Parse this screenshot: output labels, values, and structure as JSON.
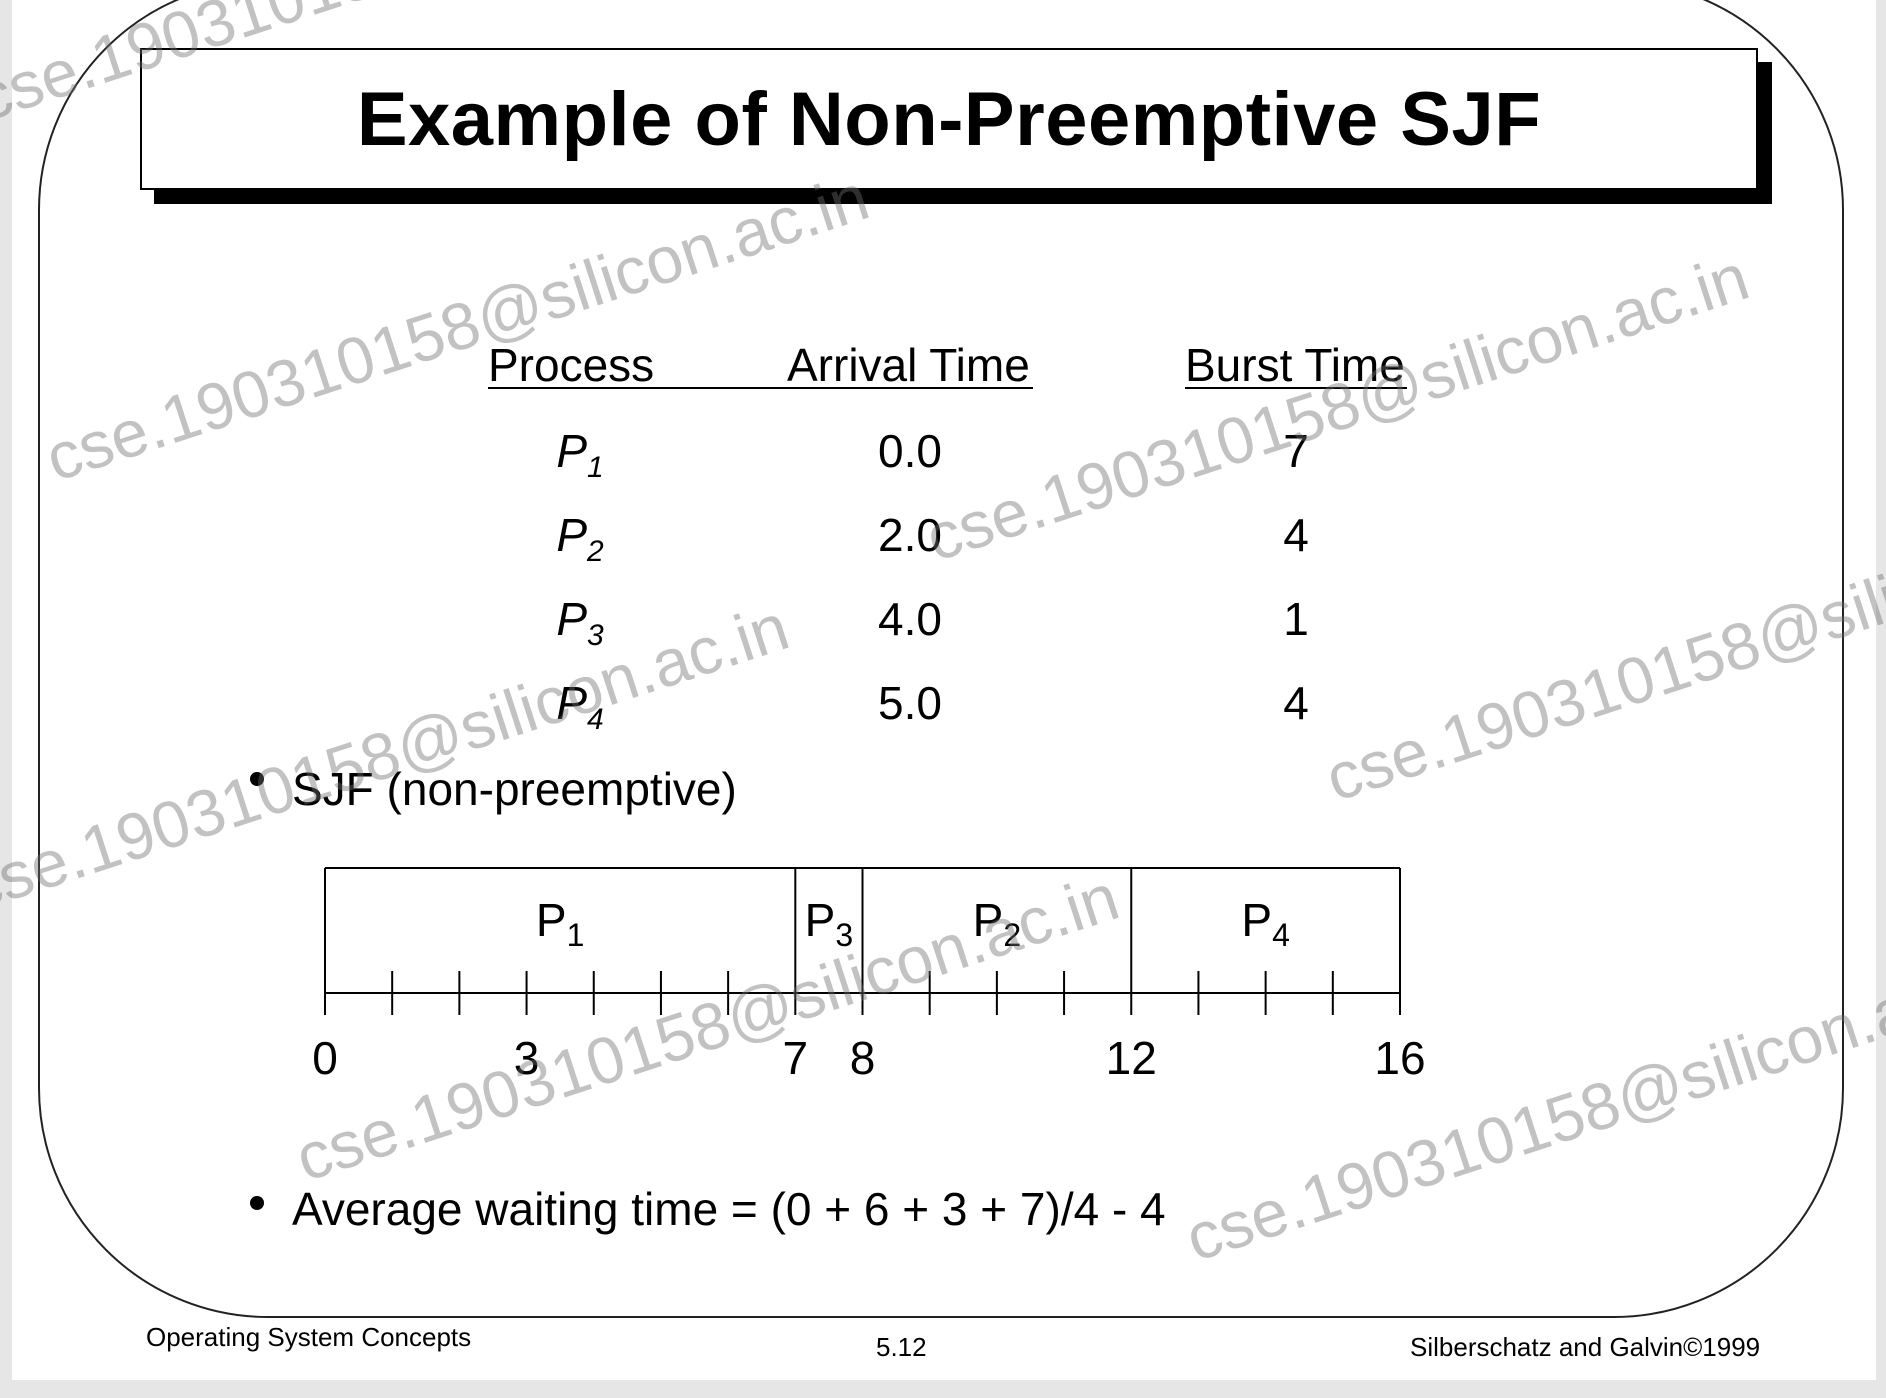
{
  "slide": {
    "title": "Example of Non-Preemptive SJF",
    "table": {
      "headers": {
        "process": "Process",
        "arrival": "Arrival Time",
        "burst": "Burst Time"
      },
      "rows": [
        {
          "process": "P",
          "sub": "1",
          "arrival": "0.0",
          "burst": "7"
        },
        {
          "process": "P",
          "sub": "2",
          "arrival": "2.0",
          "burst": "4"
        },
        {
          "process": "P",
          "sub": "3",
          "arrival": "4.0",
          "burst": "1"
        },
        {
          "process": "P",
          "sub": "4",
          "arrival": "5.0",
          "burst": "4"
        }
      ]
    },
    "bullet_sjf": "SJF (non-preemptive)",
    "bullet_avg": "Average waiting time = (0 + 6 + 3 + 7)/4 - 4"
  },
  "gantt": {
    "time_min": 0,
    "time_max": 16,
    "segments": [
      {
        "label": "P",
        "sub": "1",
        "start": 0,
        "end": 7
      },
      {
        "label": "P",
        "sub": "3",
        "start": 7,
        "end": 8
      },
      {
        "label": "P",
        "sub": "2",
        "start": 8,
        "end": 12
      },
      {
        "label": "P",
        "sub": "4",
        "start": 12,
        "end": 16
      }
    ],
    "axis_labels": [
      "0",
      "3",
      "7",
      "8",
      "12",
      "16"
    ]
  },
  "footer": {
    "left": "Operating System Concepts",
    "center": "5.12",
    "right": "Silberschatz and Galvin©1999"
  },
  "watermark": "cse.19031015­8@silicon.ac.in"
}
